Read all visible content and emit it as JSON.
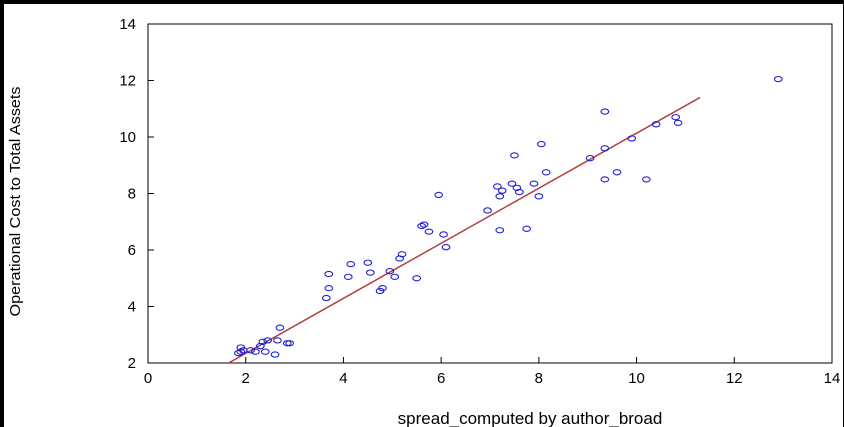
{
  "chart_data": {
    "type": "scatter",
    "xlabel": "spread_computed by author_broad",
    "ylabel": "Operational Cost to Total Assets",
    "xlim": [
      0,
      14
    ],
    "ylim": [
      2,
      14
    ],
    "x_ticks": [
      "0",
      "2",
      "4",
      "6",
      "8",
      "10",
      "12",
      "14"
    ],
    "y_ticks": [
      "2",
      "4",
      "6",
      "8",
      "10",
      "12",
      "14"
    ],
    "grid": false,
    "marker_color": "#1f1fd6",
    "fit_line_color": "#b0413e",
    "points": [
      [
        1.85,
        2.35
      ],
      [
        1.9,
        2.4
      ],
      [
        1.9,
        2.55
      ],
      [
        1.95,
        2.45
      ],
      [
        2.1,
        2.45
      ],
      [
        2.2,
        2.4
      ],
      [
        2.3,
        2.6
      ],
      [
        2.35,
        2.75
      ],
      [
        2.45,
        2.8
      ],
      [
        2.4,
        2.4
      ],
      [
        2.6,
        2.3
      ],
      [
        2.65,
        2.8
      ],
      [
        2.7,
        3.25
      ],
      [
        2.85,
        2.7
      ],
      [
        2.9,
        2.7
      ],
      [
        3.65,
        4.3
      ],
      [
        3.7,
        4.65
      ],
      [
        3.7,
        5.15
      ],
      [
        4.1,
        5.05
      ],
      [
        4.15,
        5.5
      ],
      [
        4.5,
        5.55
      ],
      [
        4.55,
        5.2
      ],
      [
        4.75,
        4.55
      ],
      [
        4.8,
        4.65
      ],
      [
        4.95,
        5.25
      ],
      [
        5.05,
        5.05
      ],
      [
        5.15,
        5.7
      ],
      [
        5.2,
        5.85
      ],
      [
        5.5,
        5.0
      ],
      [
        5.6,
        6.85
      ],
      [
        5.65,
        6.9
      ],
      [
        5.75,
        6.65
      ],
      [
        5.95,
        7.95
      ],
      [
        6.05,
        6.55
      ],
      [
        6.1,
        6.1
      ],
      [
        6.95,
        7.4
      ],
      [
        7.15,
        8.25
      ],
      [
        7.2,
        6.7
      ],
      [
        7.25,
        8.1
      ],
      [
        7.2,
        7.9
      ],
      [
        7.45,
        8.35
      ],
      [
        7.5,
        9.35
      ],
      [
        7.55,
        8.2
      ],
      [
        7.6,
        8.05
      ],
      [
        7.75,
        6.75
      ],
      [
        7.9,
        8.35
      ],
      [
        8.0,
        7.9
      ],
      [
        8.05,
        9.75
      ],
      [
        8.15,
        8.75
      ],
      [
        9.05,
        9.25
      ],
      [
        9.35,
        10.9
      ],
      [
        9.35,
        9.6
      ],
      [
        9.35,
        8.5
      ],
      [
        9.6,
        8.75
      ],
      [
        9.9,
        9.95
      ],
      [
        10.2,
        8.5
      ],
      [
        10.4,
        10.45
      ],
      [
        10.8,
        10.7
      ],
      [
        10.85,
        10.5
      ],
      [
        12.9,
        12.05
      ]
    ],
    "fit_line": {
      "x": [
        1.65,
        11.3
      ],
      "y": [
        2.0,
        11.4
      ]
    }
  }
}
